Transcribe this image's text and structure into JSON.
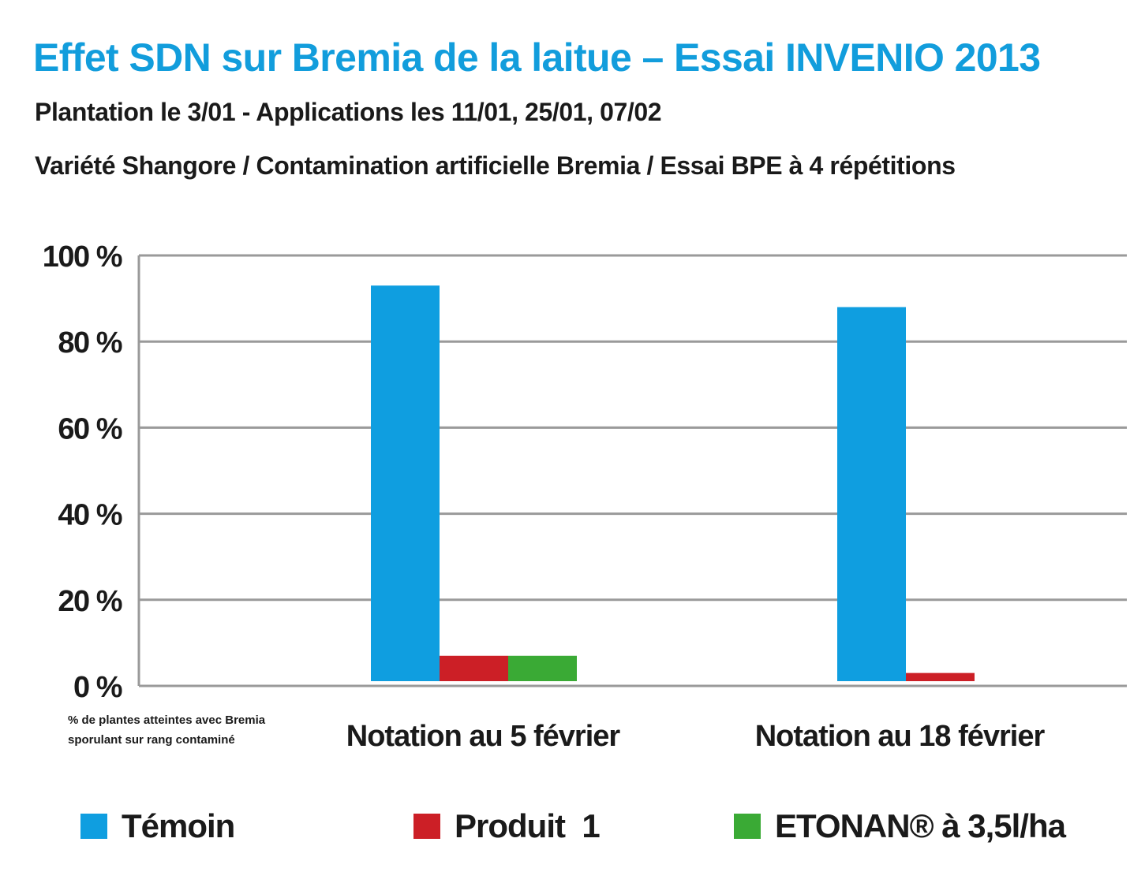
{
  "header": {
    "title": "Effet SDN sur Bremia de la laitue – Essai INVENIO 2013",
    "subtitle_1": "Plantation le 3/01   -   Applications  les 11/01, 25/01, 07/02",
    "subtitle_2": "Variété Shangore / Contamination artificielle Bremia / Essai BPE à 4 répétitions"
  },
  "chart_data": {
    "type": "bar",
    "title": "Effet SDN sur Bremia de la laitue – Essai INVENIO 2013",
    "categories": [
      "Notation au 5 février",
      "Notation au 18 février"
    ],
    "series": [
      {
        "name": "Témoin",
        "values": [
          93,
          88
        ],
        "color": "#0f9ee0"
      },
      {
        "name": "Produit  1",
        "values": [
          7,
          3
        ],
        "color": "#cc1f26"
      },
      {
        "name": "ETONAN® à 3,5l/ha",
        "values": [
          7,
          0
        ],
        "color": "#3aaa35"
      }
    ],
    "ylabel_lines": [
      "% de plantes atteintes avec Bremia",
      "sporulant sur rang contaminé"
    ],
    "yticks": [
      "0 %",
      "20 %",
      "40 %",
      "60 %",
      "80 %",
      "100 %"
    ],
    "ylim": [
      0,
      100
    ],
    "grid": true,
    "legend_position": "bottom"
  }
}
